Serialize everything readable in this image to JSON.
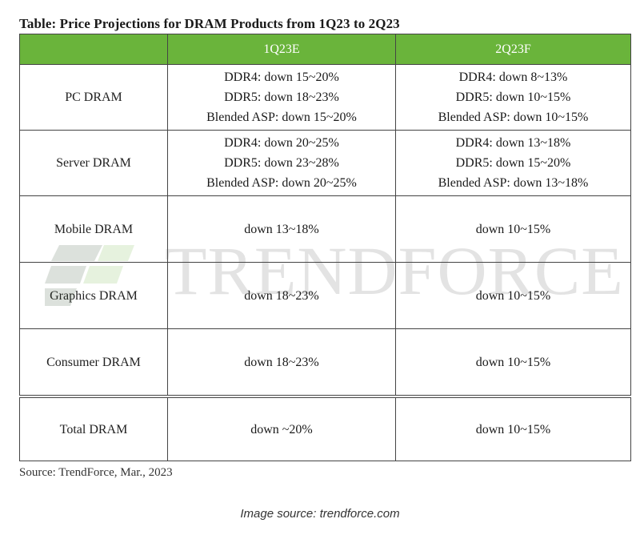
{
  "title": "Table: Price Projections for DRAM Products from 1Q23 to 2Q23",
  "table": {
    "headers": [
      "",
      "1Q23E",
      "2Q23F"
    ],
    "rows": [
      {
        "label": "PC DRAM",
        "q1": [
          "DDR4: down 15~20%",
          "DDR5: down 18~23%",
          "Blended ASP: down 15~20%"
        ],
        "q2": [
          "DDR4: down 8~13%",
          "DDR5: down 10~15%",
          "Blended ASP: down 10~15%"
        ]
      },
      {
        "label": "Server DRAM",
        "q1": [
          "DDR4: down 20~25%",
          "DDR5: down 23~28%",
          "Blended ASP: down 20~25%"
        ],
        "q2": [
          "DDR4: down 13~18%",
          "DDR5: down 15~20%",
          "Blended ASP: down 13~18%"
        ]
      },
      {
        "label": "Mobile DRAM",
        "q1": [
          "down 13~18%"
        ],
        "q2": [
          "down 10~15%"
        ]
      },
      {
        "label": "Graphics DRAM",
        "q1": [
          "down 18~23%"
        ],
        "q2": [
          "down 10~15%"
        ]
      },
      {
        "label": "Consumer DRAM",
        "q1": [
          "down 18~23%"
        ],
        "q2": [
          "down 10~15%"
        ]
      },
      {
        "label": "Total DRAM",
        "q1": [
          "down ~20%"
        ],
        "q2": [
          "down 10~15%"
        ]
      }
    ]
  },
  "watermark": "TRENDFORCE",
  "source": "Source: TrendForce, Mar., 2023",
  "image_source": "Image source: trendforce.com",
  "colors": {
    "header_bg": "#6ab43b",
    "header_text": "#ffffff",
    "border": "#444444"
  }
}
